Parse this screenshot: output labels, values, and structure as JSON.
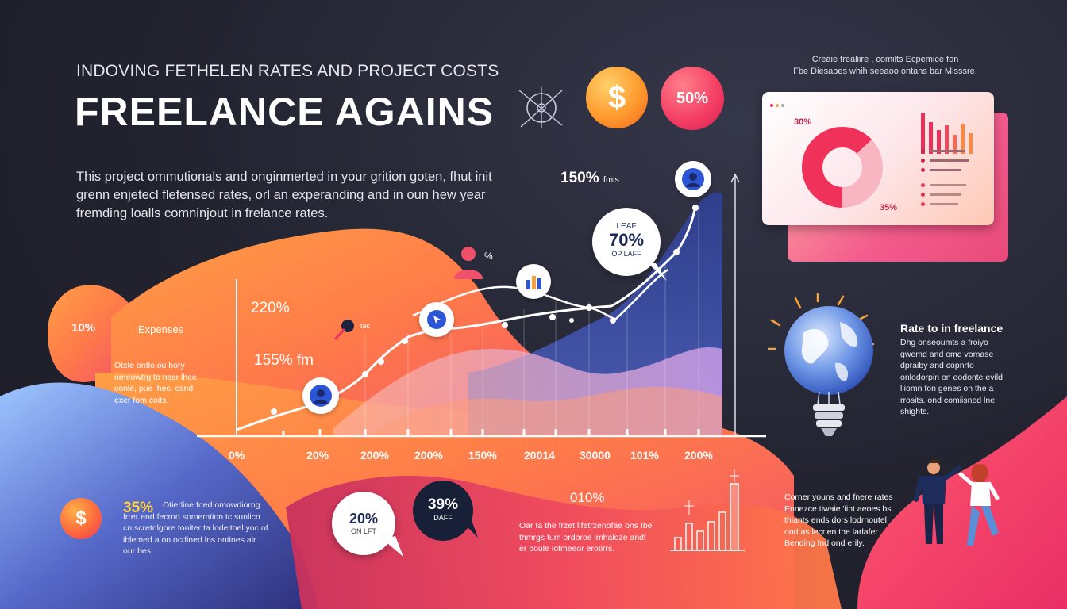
{
  "header": {
    "subtitle": "INDOVING FETHELEN RATES AND PROJECT COSTS",
    "title": "FREELANCE AGAINS"
  },
  "intro": {
    "text": "This project ommutionals and onginmerted in your grition goten, fhut init grenn enjetecl flefensed rates, orl an experanding and in oun hew year fremding loalls comninjout in frelance rates."
  },
  "top_badges": {
    "dollar_symbol": "$",
    "percent_label": "50%"
  },
  "top_right_note": {
    "line1": "Creaie frealiire , comilts Ecpemice fon",
    "line2": "Fbe Diesabes whih seeaoo ontans bar Misssre."
  },
  "dashboard_card": {
    "donut_label_top": "30%",
    "donut_label_bottom": "35%",
    "colors": {
      "accent": "#f0325a",
      "light": "#f8b6c2"
    }
  },
  "chart": {
    "peak_label": "150%",
    "peak_unit": "fmis",
    "label_220": "220%",
    "label_155": "155% fm",
    "callout_70": {
      "top": "LEAF",
      "value": "70%",
      "bottom": "OP LAFF"
    },
    "small_person_pct": "%",
    "small_tag": "tac",
    "axis_labels": [
      "0%",
      "20%",
      "200%",
      "200%",
      "150%",
      "20014",
      "30000",
      "101%",
      "200%"
    ]
  },
  "left_panel": {
    "percent": "10%",
    "heading": "Expenses",
    "text": "Otste ontlo.ou hory omeowtrg to nasr lhee conle, pue lhes. cand exer fom coits."
  },
  "right_panel": {
    "heading": "Rate to in freelance",
    "text": "Dhg onseoumts a froiyo gwemd and omd vomase dpraiby and copnrto onlodorpin on eodonte evild lliomn fon genes on the a rrosits. ond comiisned lne shights."
  },
  "bottom_left": {
    "percent": "35%",
    "dollar_symbol": "$",
    "text": "Otierline fned omowdiorng frrer end fecrnd somemtion tc sunlicn cn scretnlgore toniter ta lodeitoel yoc of iblemed a on ocdined lns ontines air our bes."
  },
  "bottom_bubbles": {
    "white": {
      "value": "20%",
      "sub": "ON LFT"
    },
    "dark": {
      "value": "39%",
      "sub": "DAFF"
    }
  },
  "bottom_center": {
    "percent": "010%",
    "text": "Oar ta the frzet lifetrzenofae ons Ibe thmrgs tum ordoroe lmhaloze andt er boule iofmeeor erotirrs."
  },
  "bottom_right": {
    "text": "Corner youns and fnere rates Ennezce tiwaie 'iint aeoes bs thiants ends dors lodrnoutel ond as lecrlen the larlafer Bending fnd ond erily."
  }
}
